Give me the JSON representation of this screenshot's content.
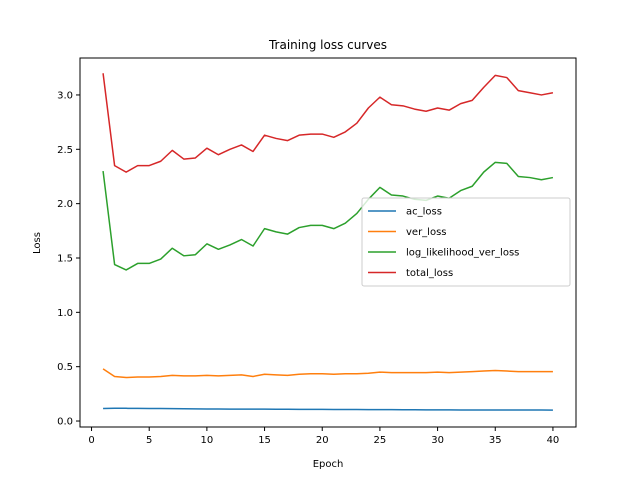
{
  "chart_data": {
    "type": "line",
    "title": "Training loss curves",
    "xlabel": "Epoch",
    "ylabel": "Loss",
    "xlim": [
      -1,
      42
    ],
    "ylim": [
      -0.055,
      3.34
    ],
    "xticks": [
      0,
      5,
      10,
      15,
      20,
      25,
      30,
      35,
      40
    ],
    "yticks": [
      0.0,
      0.5,
      1.0,
      1.5,
      2.0,
      2.5,
      3.0
    ],
    "ytick_labels": [
      "0.0",
      "0.5",
      "1.0",
      "1.5",
      "2.0",
      "2.5",
      "3.0"
    ],
    "grid": false,
    "legend": "center-right",
    "x": [
      1,
      2,
      3,
      4,
      5,
      6,
      7,
      8,
      9,
      10,
      11,
      12,
      13,
      14,
      15,
      16,
      17,
      18,
      19,
      20,
      21,
      22,
      23,
      24,
      25,
      26,
      27,
      28,
      29,
      30,
      31,
      32,
      33,
      34,
      35,
      36,
      37,
      38,
      39,
      40
    ],
    "series": [
      {
        "name": "ac_loss",
        "color": "#1f77b4",
        "values": [
          0.115,
          0.117,
          0.117,
          0.116,
          0.115,
          0.115,
          0.114,
          0.113,
          0.112,
          0.111,
          0.111,
          0.11,
          0.11,
          0.11,
          0.109,
          0.108,
          0.108,
          0.107,
          0.107,
          0.107,
          0.106,
          0.106,
          0.106,
          0.105,
          0.105,
          0.105,
          0.104,
          0.104,
          0.103,
          0.103,
          0.103,
          0.102,
          0.102,
          0.102,
          0.102,
          0.102,
          0.102,
          0.101,
          0.101,
          0.1
        ]
      },
      {
        "name": "ver_loss",
        "color": "#ff7f0e",
        "values": [
          0.48,
          0.41,
          0.4,
          0.405,
          0.405,
          0.41,
          0.42,
          0.415,
          0.415,
          0.42,
          0.415,
          0.42,
          0.425,
          0.41,
          0.43,
          0.425,
          0.42,
          0.43,
          0.435,
          0.435,
          0.43,
          0.435,
          0.435,
          0.44,
          0.45,
          0.445,
          0.445,
          0.445,
          0.445,
          0.45,
          0.445,
          0.45,
          0.455,
          0.46,
          0.465,
          0.46,
          0.455,
          0.455,
          0.455,
          0.455
        ]
      },
      {
        "name": "log_likelihood_ver_loss",
        "color": "#2ca02c",
        "values": [
          2.3,
          1.44,
          1.39,
          1.45,
          1.45,
          1.49,
          1.59,
          1.52,
          1.53,
          1.63,
          1.58,
          1.62,
          1.67,
          1.61,
          1.77,
          1.74,
          1.72,
          1.78,
          1.8,
          1.8,
          1.77,
          1.82,
          1.91,
          2.04,
          2.15,
          2.08,
          2.07,
          2.04,
          2.03,
          2.07,
          2.05,
          2.12,
          2.16,
          2.29,
          2.38,
          2.37,
          2.25,
          2.24,
          2.22,
          2.24
        ]
      },
      {
        "name": "total_loss",
        "color": "#d62728",
        "values": [
          3.2,
          2.35,
          2.29,
          2.35,
          2.35,
          2.39,
          2.49,
          2.41,
          2.42,
          2.51,
          2.45,
          2.5,
          2.54,
          2.48,
          2.63,
          2.6,
          2.58,
          2.63,
          2.64,
          2.64,
          2.61,
          2.66,
          2.74,
          2.88,
          2.98,
          2.91,
          2.9,
          2.87,
          2.85,
          2.88,
          2.86,
          2.92,
          2.95,
          3.07,
          3.18,
          3.16,
          3.04,
          3.02,
          3.0,
          3.02
        ]
      }
    ]
  }
}
